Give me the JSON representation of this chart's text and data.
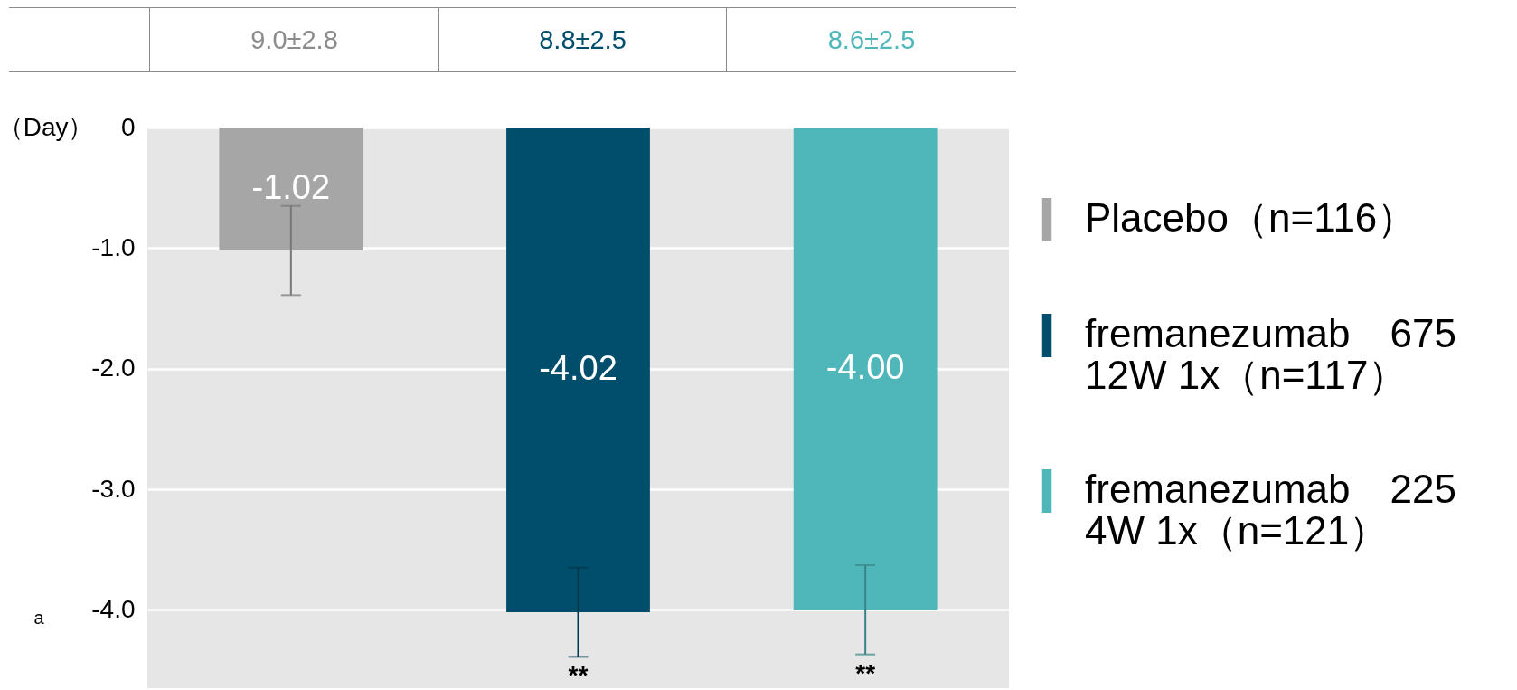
{
  "chart_data": {
    "type": "bar",
    "ylabel": "（Day）",
    "categories": [
      null
    ],
    "series": [
      {
        "name": "Placebo（n=116）",
        "color": "#a6a6a6",
        "values": [
          -1.02
        ],
        "value_labels": [
          "-1.02"
        ],
        "errors": [
          0.37
        ]
      },
      {
        "name": "fremanezumab　675 12W 1x（n=117）",
        "color": "#004e6b",
        "values": [
          -4.02
        ],
        "value_labels": [
          "-4.02"
        ],
        "errors": [
          0.37
        ]
      },
      {
        "name": "fremanezumab　225 4W 1x（n=121）",
        "color": "#4fb6ba",
        "values": [
          -4.0
        ],
        "value_labels": [
          "-4.00"
        ],
        "errors": [
          0.37
        ]
      }
    ],
    "ylim": [
      -4.65,
      0
    ],
    "yticks": [
      {
        "value": 0,
        "label": "0"
      },
      {
        "value": -1,
        "label": "-1.0"
      },
      {
        "value": -2,
        "label": "-2.0"
      },
      {
        "value": -3,
        "label": "-3.0"
      },
      {
        "value": -4,
        "label": "-4.0"
      }
    ],
    "grid": "y",
    "legend": "right",
    "annotations": [
      "9.0±2.8",
      "8.8±2.5",
      "8.6±2.5",
      "a",
      "**",
      "**"
    ]
  }
}
